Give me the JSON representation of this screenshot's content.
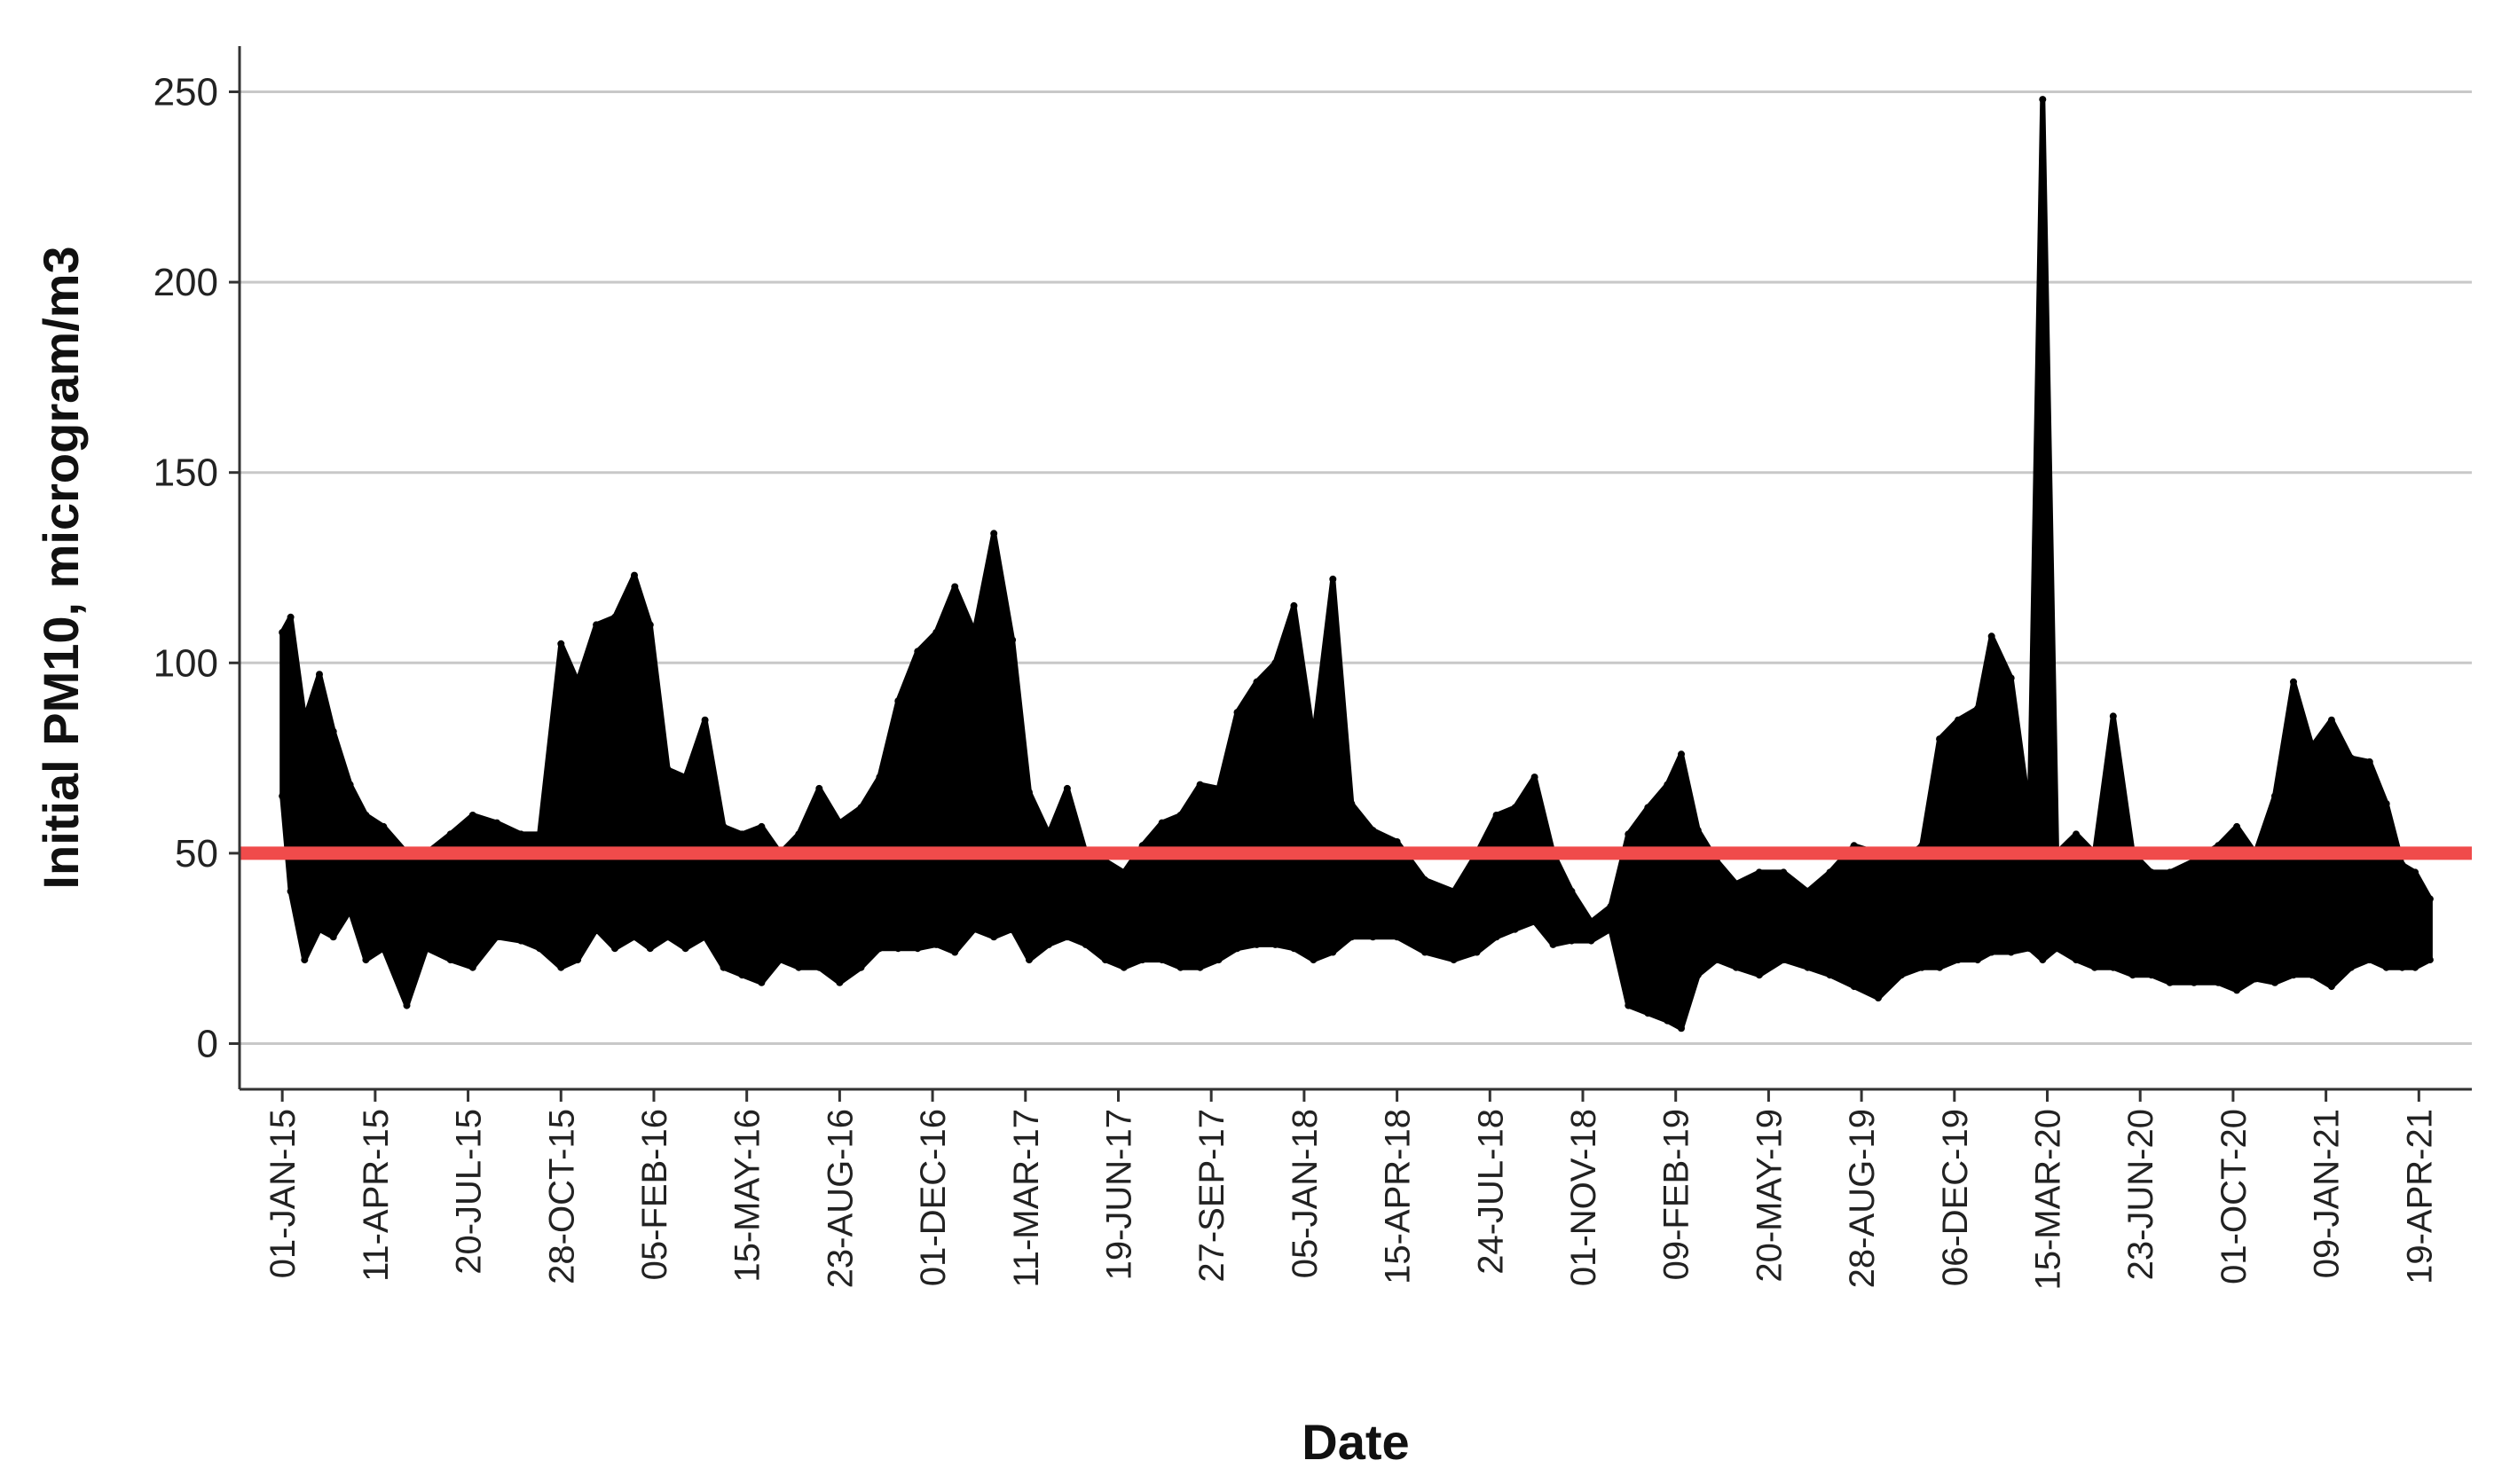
{
  "chart_data": {
    "type": "line",
    "title": "",
    "xlabel": "Date",
    "ylabel": "Initial PM10, microgram/m3",
    "ylim": [
      -12,
      262
    ],
    "yticks": [
      0,
      50,
      100,
      150,
      200,
      250
    ],
    "xlim": [
      "2014-11-16",
      "2021-06-15"
    ],
    "xtick_dates": [
      "2015-01-01",
      "2015-04-11",
      "2015-07-20",
      "2015-10-28",
      "2016-02-05",
      "2016-05-15",
      "2016-08-23",
      "2016-12-01",
      "2017-03-11",
      "2017-06-19",
      "2017-09-27",
      "2018-01-05",
      "2018-04-15",
      "2018-07-24",
      "2018-11-01",
      "2019-02-09",
      "2019-05-20",
      "2019-08-28",
      "2019-12-06",
      "2020-03-15",
      "2020-06-23",
      "2020-10-01",
      "2021-01-09",
      "2021-04-19"
    ],
    "xtick_labels": [
      "01-JAN-15",
      "11-APR-15",
      "20-JUL-15",
      "28-OCT-15",
      "05-FEB-16",
      "15-MAY-16",
      "23-AUG-16",
      "01-DEC-16",
      "11-MAR-17",
      "19-JUN-17",
      "27-SEP-17",
      "05-JAN-18",
      "15-APR-18",
      "24-JUL-18",
      "01-NOV-18",
      "09-FEB-19",
      "20-MAY-19",
      "28-AUG-19",
      "06-DEC-19",
      "15-MAR-20",
      "23-JUN-20",
      "01-OCT-20",
      "09-JAN-21",
      "19-APR-21"
    ],
    "grid": "horizontal",
    "legend": "none",
    "reference_line": {
      "y": 50,
      "color": "#f04b4b"
    },
    "series": [
      {
        "color": "#000000",
        "start_date": "2015-01-01",
        "end_date": "2021-05-01",
        "envelope": [
          [
            "2015-01-01",
            65,
            108
          ],
          [
            "2015-01-10",
            40,
            112
          ],
          [
            "2015-01-25",
            22,
            85
          ],
          [
            "2015-02-10",
            30,
            97
          ],
          [
            "2015-02-25",
            28,
            82
          ],
          [
            "2015-03-15",
            35,
            68
          ],
          [
            "2015-04-01",
            22,
            60
          ],
          [
            "2015-04-20",
            25,
            57
          ],
          [
            "2015-05-15",
            10,
            50
          ],
          [
            "2015-06-05",
            25,
            50
          ],
          [
            "2015-07-01",
            22,
            55
          ],
          [
            "2015-07-25",
            20,
            60
          ],
          [
            "2015-08-20",
            28,
            58
          ],
          [
            "2015-09-15",
            27,
            55
          ],
          [
            "2015-10-05",
            25,
            55
          ],
          [
            "2015-10-28",
            20,
            105
          ],
          [
            "2015-11-15",
            22,
            95
          ],
          [
            "2015-12-05",
            30,
            110
          ],
          [
            "2015-12-25",
            25,
            112
          ],
          [
            "2016-01-15",
            28,
            123
          ],
          [
            "2016-02-01",
            25,
            110
          ],
          [
            "2016-02-20",
            28,
            72
          ],
          [
            "2016-03-10",
            25,
            70
          ],
          [
            "2016-03-31",
            28,
            85
          ],
          [
            "2016-04-20",
            20,
            57
          ],
          [
            "2016-05-10",
            18,
            55
          ],
          [
            "2016-05-31",
            16,
            57
          ],
          [
            "2016-06-20",
            22,
            50
          ],
          [
            "2016-07-10",
            20,
            55
          ],
          [
            "2016-08-01",
            20,
            67
          ],
          [
            "2016-08-23",
            16,
            58
          ],
          [
            "2016-09-15",
            20,
            62
          ],
          [
            "2016-10-05",
            25,
            70
          ],
          [
            "2016-10-25",
            25,
            90
          ],
          [
            "2016-11-15",
            25,
            103
          ],
          [
            "2016-12-05",
            26,
            108
          ],
          [
            "2016-12-25",
            24,
            120
          ],
          [
            "2017-01-15",
            30,
            108
          ],
          [
            "2017-02-05",
            28,
            134
          ],
          [
            "2017-02-25",
            30,
            106
          ],
          [
            "2017-03-15",
            22,
            66
          ],
          [
            "2017-04-05",
            26,
            55
          ],
          [
            "2017-04-25",
            28,
            67
          ],
          [
            "2017-05-15",
            26,
            50
          ],
          [
            "2017-06-05",
            22,
            48
          ],
          [
            "2017-06-25",
            20,
            45
          ],
          [
            "2017-07-15",
            22,
            52
          ],
          [
            "2017-08-05",
            22,
            58
          ],
          [
            "2017-08-25",
            20,
            60
          ],
          [
            "2017-09-15",
            20,
            68
          ],
          [
            "2017-10-05",
            22,
            67
          ],
          [
            "2017-10-25",
            25,
            87
          ],
          [
            "2017-11-15",
            26,
            95
          ],
          [
            "2017-12-05",
            26,
            100
          ],
          [
            "2017-12-25",
            25,
            115
          ],
          [
            "2018-01-15",
            22,
            80
          ],
          [
            "2018-02-05",
            24,
            122
          ],
          [
            "2018-02-25",
            28,
            63
          ],
          [
            "2018-03-20",
            28,
            56
          ],
          [
            "2018-04-15",
            28,
            53
          ],
          [
            "2018-05-15",
            24,
            43
          ],
          [
            "2018-06-15",
            22,
            40
          ],
          [
            "2018-07-10",
            24,
            50
          ],
          [
            "2018-07-31",
            28,
            60
          ],
          [
            "2018-08-20",
            30,
            62
          ],
          [
            "2018-09-10",
            32,
            70
          ],
          [
            "2018-09-30",
            26,
            50
          ],
          [
            "2018-10-20",
            27,
            40
          ],
          [
            "2018-11-10",
            27,
            32
          ],
          [
            "2018-12-01",
            30,
            36
          ],
          [
            "2018-12-20",
            10,
            55
          ],
          [
            "2019-01-10",
            8,
            62
          ],
          [
            "2019-01-31",
            6,
            68
          ],
          [
            "2019-02-15",
            4,
            76
          ],
          [
            "2019-03-05",
            18,
            56
          ],
          [
            "2019-03-25",
            22,
            48
          ],
          [
            "2019-04-15",
            20,
            42
          ],
          [
            "2019-05-10",
            18,
            45
          ],
          [
            "2019-06-05",
            22,
            45
          ],
          [
            "2019-07-01",
            20,
            40
          ],
          [
            "2019-07-25",
            18,
            45
          ],
          [
            "2019-08-20",
            15,
            52
          ],
          [
            "2019-09-15",
            12,
            50
          ],
          [
            "2019-10-10",
            18,
            48
          ],
          [
            "2019-11-01",
            20,
            52
          ],
          [
            "2019-11-20",
            20,
            80
          ],
          [
            "2019-12-10",
            22,
            85
          ],
          [
            "2019-12-31",
            22,
            88
          ],
          [
            "2020-01-15",
            24,
            107
          ],
          [
            "2020-02-05",
            24,
            96
          ],
          [
            "2020-02-25",
            25,
            60
          ],
          [
            "2020-03-10",
            22,
            248
          ],
          [
            "2020-03-25",
            25,
            50
          ],
          [
            "2020-04-15",
            22,
            55
          ],
          [
            "2020-05-05",
            20,
            50
          ],
          [
            "2020-05-25",
            20,
            86
          ],
          [
            "2020-06-15",
            18,
            50
          ],
          [
            "2020-07-05",
            18,
            45
          ],
          [
            "2020-07-25",
            16,
            45
          ],
          [
            "2020-08-20",
            16,
            48
          ],
          [
            "2020-09-15",
            16,
            52
          ],
          [
            "2020-10-05",
            14,
            57
          ],
          [
            "2020-10-25",
            17,
            50
          ],
          [
            "2020-11-15",
            16,
            65
          ],
          [
            "2020-12-05",
            18,
            95
          ],
          [
            "2020-12-25",
            18,
            78
          ],
          [
            "2021-01-15",
            15,
            85
          ],
          [
            "2021-02-05",
            20,
            75
          ],
          [
            "2021-02-25",
            22,
            74
          ],
          [
            "2021-03-15",
            20,
            63
          ],
          [
            "2021-04-01",
            20,
            47
          ],
          [
            "2021-04-15",
            20,
            45
          ],
          [
            "2021-05-01",
            22,
            38
          ]
        ]
      }
    ]
  }
}
